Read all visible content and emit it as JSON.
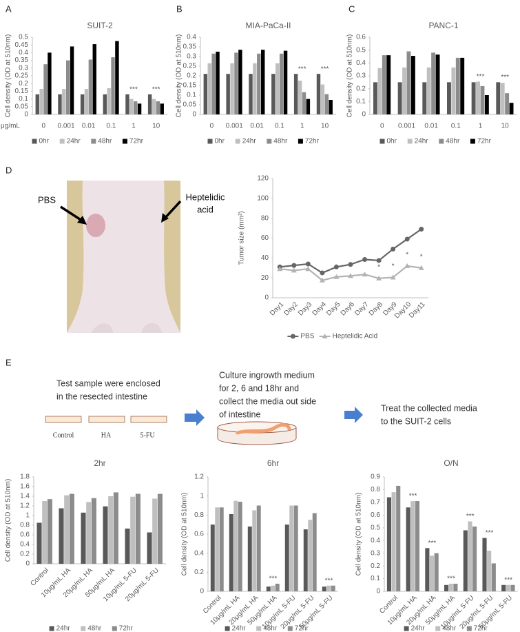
{
  "panel_labels": [
    "A",
    "B",
    "C",
    "D",
    "E"
  ],
  "photo": {
    "pbs_label": "PBS",
    "ha_label_lines": [
      "Heptelidic",
      "acid"
    ]
  },
  "diagram": {
    "steps": [
      [
        "Test sample were enclosed",
        "in the resected intestine"
      ],
      [
        "Culture ingrowth medium",
        "for 2, 6 and 18hr and",
        "collect the media out side",
        "of intestine"
      ],
      [
        "Treat the collected media",
        "to the SUIT-2 cells"
      ]
    ],
    "samples": [
      "Control",
      "HA",
      "5-FU"
    ]
  },
  "chart_data": [
    {
      "type": "bar",
      "title": "SUIT-2",
      "y_label": "Cell density (OD at 510nm)",
      "x_label": "μg/mL",
      "categories": [
        "0",
        "0.001",
        "0.01",
        "0.1",
        "1",
        "10"
      ],
      "series": [
        {
          "name": "0hr",
          "color": "#595959",
          "values": [
            0.13,
            0.13,
            0.13,
            0.13,
            0.13,
            0.13
          ]
        },
        {
          "name": "24hr",
          "color": "#bfbfbf",
          "values": [
            0.165,
            0.165,
            0.165,
            0.17,
            0.1,
            0.1
          ]
        },
        {
          "name": "48hr",
          "color": "#8c8c8c",
          "values": [
            0.325,
            0.35,
            0.355,
            0.37,
            0.085,
            0.085
          ]
        },
        {
          "name": "72hr",
          "color": "#000000",
          "values": [
            0.4,
            0.44,
            0.455,
            0.475,
            0.07,
            0.07
          ]
        }
      ],
      "ylim": [
        0,
        0.5
      ],
      "yticks": [
        0,
        0.05,
        0.1,
        0.15,
        0.2,
        0.25,
        0.3,
        0.35,
        0.4,
        0.45,
        0.5
      ],
      "legend": "bottom",
      "annotations": [
        {
          "text": "***",
          "category": "1"
        },
        {
          "text": "***",
          "category": "10"
        }
      ]
    },
    {
      "type": "bar",
      "title": "MIA-PaCa-II",
      "y_label": "Cell density (OD at 510nm)",
      "categories": [
        "0",
        "0.001",
        "0.01",
        "0.1",
        "1",
        "10"
      ],
      "series": [
        {
          "name": "0hr",
          "color": "#595959",
          "values": [
            0.21,
            0.21,
            0.21,
            0.21,
            0.21,
            0.21
          ]
        },
        {
          "name": "24hr",
          "color": "#bfbfbf",
          "values": [
            0.265,
            0.265,
            0.265,
            0.265,
            0.175,
            0.155
          ]
        },
        {
          "name": "48hr",
          "color": "#8c8c8c",
          "values": [
            0.315,
            0.32,
            0.315,
            0.315,
            0.115,
            0.105
          ]
        },
        {
          "name": "72hr",
          "color": "#000000",
          "values": [
            0.325,
            0.335,
            0.335,
            0.33,
            0.08,
            0.075
          ]
        }
      ],
      "ylim": [
        0,
        0.4
      ],
      "yticks": [
        0,
        0.05,
        0.1,
        0.15,
        0.2,
        0.25,
        0.3,
        0.35,
        0.4
      ],
      "legend": "bottom",
      "annotations": [
        {
          "text": "***",
          "category": "1"
        },
        {
          "text": "***",
          "category": "10"
        }
      ]
    },
    {
      "type": "bar",
      "title": "PANC-1",
      "y_label": "Cell density (OD at 510nm)",
      "categories": [
        "0",
        "0.001",
        "0.01",
        "0.1",
        "1",
        "10"
      ],
      "series": [
        {
          "name": "0hr",
          "color": "#595959",
          "values": [
            0.25,
            0.25,
            0.25,
            0.25,
            0.25,
            0.25
          ]
        },
        {
          "name": "24hr",
          "color": "#bfbfbf",
          "values": [
            0.36,
            0.365,
            0.365,
            0.365,
            0.255,
            0.245
          ]
        },
        {
          "name": "48hr",
          "color": "#8c8c8c",
          "values": [
            0.46,
            0.49,
            0.48,
            0.44,
            0.22,
            0.165
          ]
        },
        {
          "name": "72hr",
          "color": "#000000",
          "values": [
            0.46,
            0.455,
            0.465,
            0.44,
            0.15,
            0.09
          ]
        }
      ],
      "ylim": [
        0,
        0.6
      ],
      "yticks": [
        0,
        0.1,
        0.2,
        0.3,
        0.4,
        0.5,
        0.6
      ],
      "legend": "bottom",
      "annotations": [
        {
          "text": "***",
          "category": "1"
        },
        {
          "text": "***",
          "category": "10"
        }
      ]
    },
    {
      "type": "line",
      "y_label": "Tumor size (mm²)",
      "categories": [
        "Day1",
        "Day2",
        "Day3",
        "Day4",
        "Day5",
        "Day6",
        "Day7",
        "Day8",
        "Day9",
        "Day10",
        "Day11"
      ],
      "series": [
        {
          "name": "PBS",
          "color": "#666666",
          "marker": "circle",
          "values": [
            31,
            32.5,
            34,
            25,
            31,
            33.5,
            38.5,
            37.5,
            49,
            59,
            69
          ]
        },
        {
          "name": "Heptelidic Acid",
          "color": "#b3b3b3",
          "marker": "triangle",
          "values": [
            29,
            27.5,
            29,
            17.5,
            21,
            22,
            23.5,
            19.5,
            20.5,
            32,
            30
          ]
        }
      ],
      "ylim": [
        0,
        120
      ],
      "yticks": [
        0,
        20,
        40,
        60,
        80,
        100,
        120
      ],
      "legend": "bottom",
      "annotations": [
        {
          "text": "*",
          "category": "Day8"
        },
        {
          "text": "*",
          "category": "Day9"
        },
        {
          "text": "*",
          "category": "Day10"
        },
        {
          "text": "*",
          "category": "Day11"
        }
      ]
    },
    {
      "type": "bar",
      "title": "2hr",
      "y_label": "Cell density (OD at 510nm)",
      "categories": [
        "Control",
        "10μg/mL HA",
        "20μg/mL HA",
        "50μg/mL HA",
        "10μg/mL 5-FU",
        "20μg/mL 5-FU"
      ],
      "series": [
        {
          "name": "24hr",
          "color": "#595959",
          "values": [
            0.85,
            1.15,
            1.06,
            1.19,
            0.73,
            0.65
          ]
        },
        {
          "name": "48hr",
          "color": "#bfbfbf",
          "values": [
            1.3,
            1.42,
            1.28,
            1.4,
            1.39,
            1.35
          ]
        },
        {
          "name": "72hr",
          "color": "#8c8c8c",
          "values": [
            1.34,
            1.45,
            1.36,
            1.48,
            1.45,
            1.45
          ]
        }
      ],
      "ylim": [
        0,
        1.8
      ],
      "yticks": [
        0,
        0.2,
        0.4,
        0.6,
        0.8,
        1,
        1.2,
        1.4,
        1.6,
        1.8
      ],
      "legend": "bottom"
    },
    {
      "type": "bar",
      "title": "6hr",
      "y_label": "Cell density (OD at 510nm)",
      "categories": [
        "Control",
        "10μg/mL HA",
        "20μg/mL HA",
        "50μg/mL HA",
        "10μg/mL 5-FU",
        "20μg/mL 5-FU",
        "50μg/mL 5-FU"
      ],
      "series": [
        {
          "name": "24hr",
          "color": "#595959",
          "values": [
            0.7,
            0.81,
            0.68,
            0.05,
            0.7,
            0.65,
            0.05
          ]
        },
        {
          "name": "48hr",
          "color": "#bfbfbf",
          "values": [
            0.88,
            0.95,
            0.85,
            0.06,
            0.9,
            0.75,
            0.06
          ]
        },
        {
          "name": "72hr",
          "color": "#8c8c8c",
          "values": [
            0.88,
            0.94,
            0.9,
            0.08,
            0.9,
            0.82,
            0.06
          ]
        }
      ],
      "ylim": [
        0,
        1.2
      ],
      "yticks": [
        0,
        0.2,
        0.4,
        0.6,
        0.8,
        1,
        1.2
      ],
      "legend": "bottom",
      "annotations": [
        {
          "text": "***",
          "category": "50μg/mL HA"
        },
        {
          "text": "***",
          "category": "50μg/mL 5-FU"
        }
      ]
    },
    {
      "type": "bar",
      "title": "O/N",
      "y_label": "Cell density (OD at 510nm)",
      "categories": [
        "Control",
        "10μg/mL HA",
        "20μg/mL HA",
        "50μg/mL HA",
        "10μg/mL 5-FU",
        "20μg/mL 5-FU",
        "50μg/mL 5-FU"
      ],
      "series": [
        {
          "name": "24hr",
          "color": "#595959",
          "values": [
            0.74,
            0.66,
            0.34,
            0.05,
            0.48,
            0.42,
            0.05
          ]
        },
        {
          "name": "48hr",
          "color": "#bfbfbf",
          "values": [
            0.78,
            0.71,
            0.28,
            0.06,
            0.55,
            0.32,
            0.05
          ]
        },
        {
          "name": "72hr",
          "color": "#8c8c8c",
          "values": [
            0.83,
            0.71,
            0.3,
            0.06,
            0.51,
            0.22,
            0.05
          ]
        }
      ],
      "ylim": [
        0,
        0.9
      ],
      "yticks": [
        0,
        0.1,
        0.2,
        0.3,
        0.4,
        0.5,
        0.6,
        0.7,
        0.8,
        0.9
      ],
      "legend": "bottom",
      "annotations": [
        {
          "text": "***",
          "category": "10μg/mL HA"
        },
        {
          "text": "***",
          "category": "20μg/mL HA"
        },
        {
          "text": "***",
          "category": "50μg/mL HA"
        },
        {
          "text": "***",
          "category": "10μg/mL 5-FU"
        },
        {
          "text": "***",
          "category": "20μg/mL 5-FU"
        },
        {
          "text": "***",
          "category": "50μg/mL 5-FU"
        }
      ]
    }
  ]
}
